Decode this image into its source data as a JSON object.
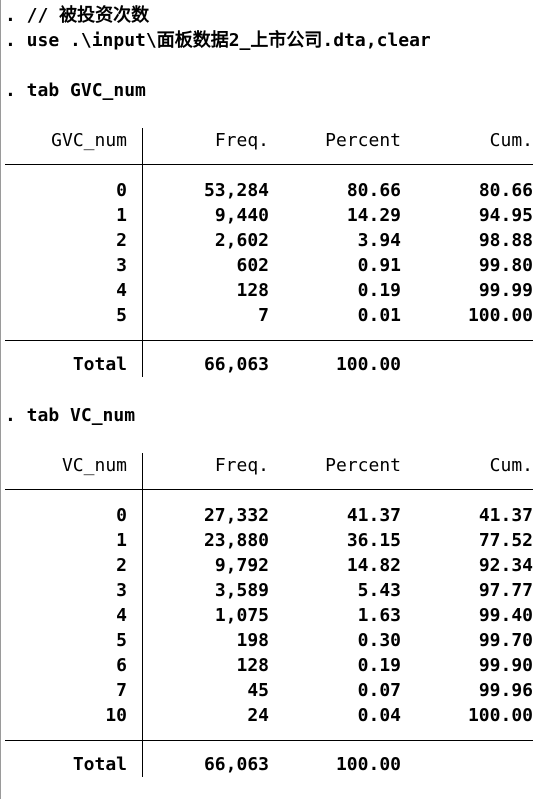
{
  "commands": [
    ". // 被投资次数",
    ". use .\\input\\面板数据2_上市公司.dta,clear",
    ". tab GVC_num",
    ". tab VC_num"
  ],
  "tables": [
    {
      "var_name": "GVC_num",
      "headers": [
        "Freq.",
        "Percent",
        "Cum."
      ],
      "rows": [
        [
          "0",
          "53,284",
          "80.66",
          "80.66"
        ],
        [
          "1",
          "9,440",
          "14.29",
          "94.95"
        ],
        [
          "2",
          "2,602",
          "3.94",
          "98.88"
        ],
        [
          "3",
          "602",
          "0.91",
          "99.80"
        ],
        [
          "4",
          "128",
          "0.19",
          "99.99"
        ],
        [
          "5",
          "7",
          "0.01",
          "100.00"
        ]
      ],
      "total": [
        "Total",
        "66,063",
        "100.00"
      ]
    },
    {
      "var_name": "VC_num",
      "headers": [
        "Freq.",
        "Percent",
        "Cum."
      ],
      "rows": [
        [
          "0",
          "27,332",
          "41.37",
          "41.37"
        ],
        [
          "1",
          "23,880",
          "36.15",
          "77.52"
        ],
        [
          "2",
          "9,792",
          "14.82",
          "92.34"
        ],
        [
          "3",
          "3,589",
          "5.43",
          "97.77"
        ],
        [
          "4",
          "1,075",
          "1.63",
          "99.40"
        ],
        [
          "5",
          "198",
          "0.30",
          "99.70"
        ],
        [
          "6",
          "128",
          "0.19",
          "99.90"
        ],
        [
          "7",
          "45",
          "0.07",
          "99.96"
        ],
        [
          "10",
          "24",
          "0.04",
          "100.00"
        ]
      ],
      "total": [
        "Total",
        "66,063",
        "100.00"
      ]
    }
  ]
}
